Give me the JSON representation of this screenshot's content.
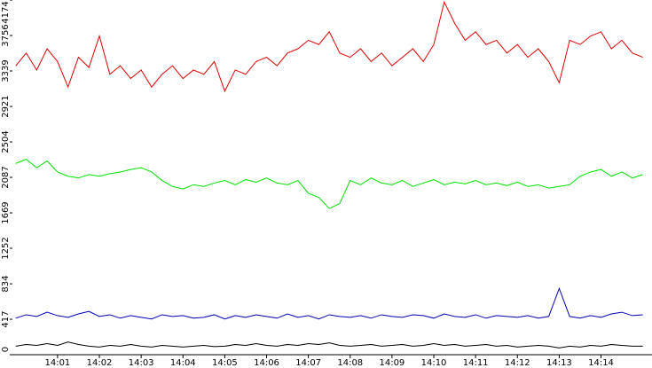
{
  "chart_data": {
    "type": "line",
    "x": [
      0,
      0.25,
      0.5,
      0.75,
      1,
      1.25,
      1.5,
      1.75,
      2,
      2.25,
      2.5,
      2.75,
      3,
      3.25,
      3.5,
      3.75,
      4,
      4.25,
      4.5,
      4.75,
      5,
      5.25,
      5.5,
      5.75,
      6,
      6.25,
      6.5,
      6.75,
      7,
      7.25,
      7.5,
      7.75,
      8,
      8.25,
      8.5,
      8.75,
      9,
      9.25,
      9.5,
      9.75,
      10,
      10.25,
      10.5,
      10.75,
      11,
      11.25,
      11.5,
      11.75,
      12,
      12.25,
      12.5,
      12.75,
      13,
      13.25,
      13.5,
      13.75,
      14,
      14.25,
      14.5,
      14.75,
      15
    ],
    "series": [
      {
        "color": "#e00000",
        "values": [
          3400,
          3550,
          3350,
          3600,
          3450,
          3150,
          3500,
          3380,
          3750,
          3300,
          3400,
          3250,
          3350,
          3150,
          3300,
          3400,
          3250,
          3350,
          3300,
          3450,
          3100,
          3350,
          3300,
          3450,
          3500,
          3400,
          3550,
          3600,
          3700,
          3650,
          3800,
          3550,
          3500,
          3600,
          3450,
          3550,
          3400,
          3500,
          3600,
          3450,
          3650,
          4150,
          3900,
          3700,
          3800,
          3650,
          3700,
          3550,
          3650,
          3500,
          3600,
          3450,
          3200,
          3700,
          3650,
          3750,
          3800,
          3600,
          3700,
          3550,
          3500
        ]
      },
      {
        "color": "#00e000",
        "values": [
          2250,
          2300,
          2200,
          2280,
          2150,
          2100,
          2080,
          2120,
          2100,
          2130,
          2150,
          2180,
          2200,
          2150,
          2050,
          1980,
          1950,
          2000,
          1980,
          2020,
          2050,
          2000,
          2060,
          2030,
          2080,
          2020,
          2000,
          2050,
          1900,
          1850,
          1720,
          1780,
          2050,
          2000,
          2080,
          2020,
          2000,
          2050,
          1980,
          2020,
          2060,
          2000,
          2030,
          2010,
          2050,
          2000,
          2020,
          1990,
          2030,
          1980,
          2000,
          1960,
          1980,
          2000,
          2100,
          2150,
          2180,
          2100,
          2150,
          2080,
          2120
        ]
      },
      {
        "color": "#0000b0",
        "values": [
          430,
          470,
          450,
          500,
          460,
          440,
          480,
          510,
          450,
          470,
          430,
          460,
          440,
          420,
          470,
          450,
          460,
          430,
          440,
          470,
          420,
          460,
          440,
          470,
          450,
          430,
          480,
          440,
          460,
          420,
          470,
          450,
          440,
          460,
          430,
          470,
          450,
          440,
          470,
          460,
          430,
          480,
          450,
          440,
          470,
          430,
          460,
          450,
          440,
          460,
          430,
          450,
          780,
          450,
          430,
          460,
          440,
          480,
          500,
          460,
          470
        ]
      },
      {
        "color": "#000000",
        "values": [
          100,
          120,
          110,
          130,
          110,
          150,
          120,
          100,
          90,
          110,
          100,
          120,
          100,
          90,
          110,
          100,
          90,
          100,
          110,
          95,
          100,
          120,
          110,
          130,
          110,
          100,
          120,
          110,
          130,
          120,
          140,
          110,
          100,
          110,
          120,
          100,
          110,
          120,
          100,
          110,
          130,
          110,
          120,
          100,
          110,
          120,
          100,
          110,
          90,
          100,
          110,
          100,
          80,
          100,
          90,
          110,
          100,
          120,
          110,
          100,
          100
        ]
      }
    ],
    "xlim": [
      -0.08,
      15.22
    ],
    "xticks": [
      {
        "value": 1,
        "label": "14:01"
      },
      {
        "value": 2,
        "label": "14:02"
      },
      {
        "value": 3,
        "label": "14:03"
      },
      {
        "value": 4,
        "label": "14:04"
      },
      {
        "value": 5,
        "label": "14:05"
      },
      {
        "value": 6,
        "label": "14:06"
      },
      {
        "value": 7,
        "label": "14:07"
      },
      {
        "value": 8,
        "label": "14:08"
      },
      {
        "value": 9,
        "label": "14:09"
      },
      {
        "value": 10,
        "label": "14:10"
      },
      {
        "value": 11,
        "label": "14:11"
      },
      {
        "value": 12,
        "label": "14:12"
      },
      {
        "value": 13,
        "label": "14:13"
      },
      {
        "value": 14,
        "label": "14:14"
      }
    ],
    "ylim": [
      0,
      4174
    ],
    "yticks": [
      0,
      417,
      834,
      1252,
      1669,
      2087,
      2504,
      2921,
      3339,
      3756,
      4174
    ]
  }
}
